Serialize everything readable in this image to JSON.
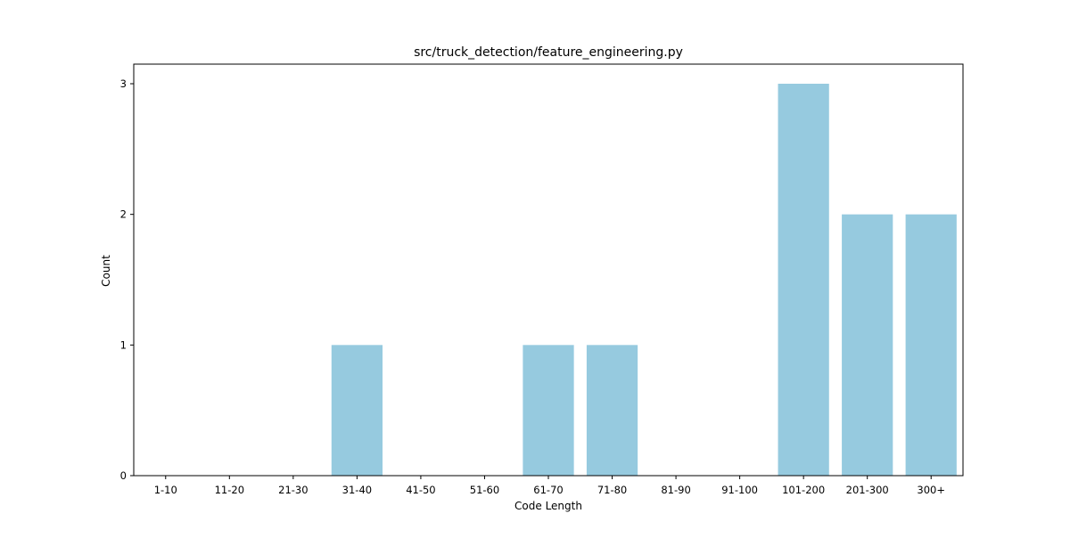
{
  "chart_data": {
    "type": "bar",
    "title": "src/truck_detection/feature_engineering.py",
    "xlabel": "Code Length",
    "ylabel": "Count",
    "categories": [
      "1-10",
      "11-20",
      "21-30",
      "31-40",
      "41-50",
      "51-60",
      "61-70",
      "71-80",
      "81-90",
      "91-100",
      "101-200",
      "201-300",
      "300+"
    ],
    "values": [
      0,
      0,
      0,
      1,
      0,
      0,
      1,
      1,
      0,
      0,
      3,
      2,
      2
    ],
    "ylim": [
      0,
      3.15
    ],
    "yticks": [
      0,
      1,
      2,
      3
    ],
    "bar_color": "#96cadf",
    "grid": false,
    "legend": "none"
  }
}
